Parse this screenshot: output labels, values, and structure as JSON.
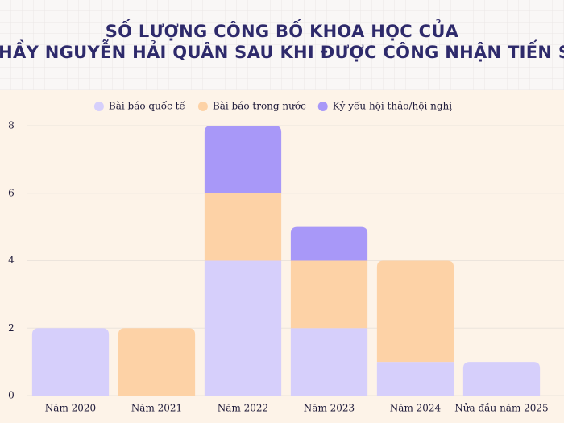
{
  "chart_data": {
    "type": "stacked-bar",
    "title": [
      "SỐ LƯỢNG CÔNG BỐ KHOA HỌC CỦA",
      "THẦY NGUYỄN HẢI QUÂN SAU KHI ĐƯỢC CÔNG NHẬN TIẾN SĨ"
    ],
    "categories": [
      "Năm 2020",
      "Năm 2021",
      "Năm 2022",
      "Năm 2023",
      "Năm 2024",
      "Nửa đầu năm 2025"
    ],
    "series": [
      {
        "name": "Bài báo quốc tế",
        "color": "#d6cffb",
        "values": [
          2,
          0,
          4,
          2,
          1,
          1
        ]
      },
      {
        "name": "Bài báo trong nước",
        "color": "#fdd2a6",
        "values": [
          0,
          2,
          2,
          2,
          3,
          0
        ]
      },
      {
        "name": "Kỷ yếu hội thảo/hội nghị",
        "color": "#a898f8",
        "values": [
          0,
          0,
          2,
          1,
          0,
          0
        ]
      }
    ],
    "ylim": [
      0,
      8
    ],
    "yticks": [
      0,
      2,
      4,
      6,
      8
    ],
    "grid": true,
    "legend": "top"
  }
}
